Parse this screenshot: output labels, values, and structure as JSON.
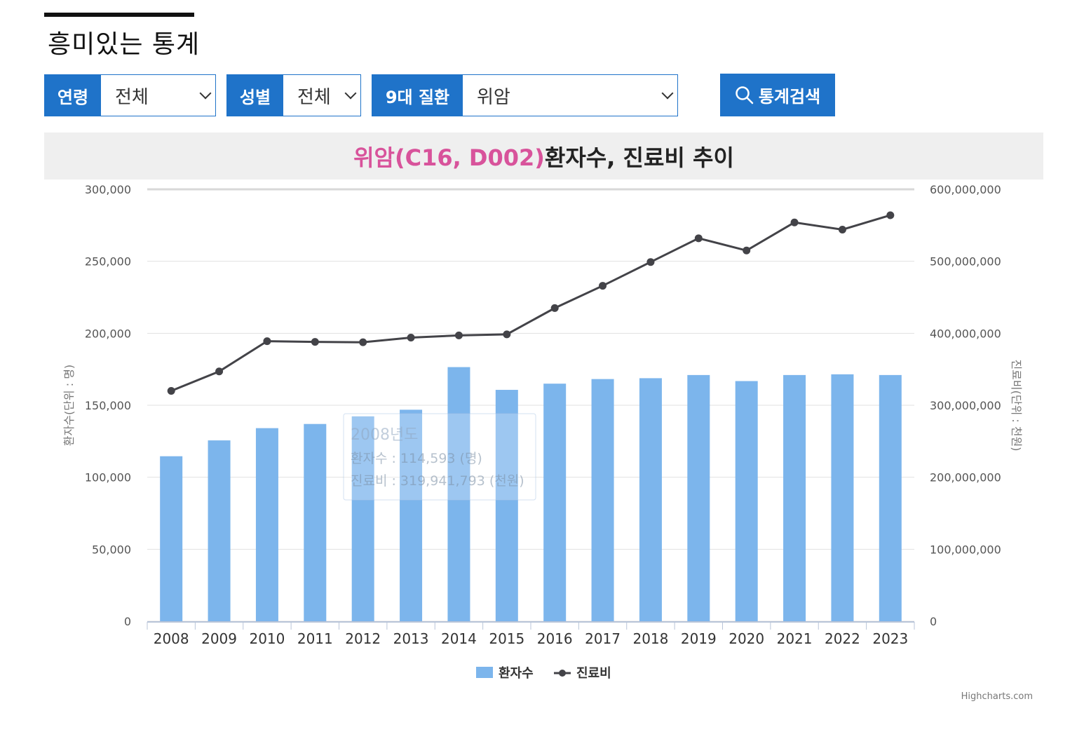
{
  "page": {
    "title": "흥미있는 통계"
  },
  "filters": {
    "age": {
      "label": "연령",
      "value": "전체"
    },
    "sex": {
      "label": "성별",
      "value": "전체"
    },
    "disease": {
      "label": "9대 질환",
      "value": "위암"
    }
  },
  "search_button": {
    "label": "통계검색",
    "icon": "search-icon"
  },
  "chart_header": {
    "highlight": "위암(C16, D002)",
    "rest": " 환자수, 진료비 추이"
  },
  "colors": {
    "accent": "#1f73c9",
    "bar": "#7cb5ec",
    "line": "#434348",
    "highlight": "#d8539b"
  },
  "chart_data": {
    "type": "bar",
    "categories": [
      "2008",
      "2009",
      "2010",
      "2011",
      "2012",
      "2013",
      "2014",
      "2015",
      "2016",
      "2017",
      "2018",
      "2019",
      "2020",
      "2021",
      "2022",
      "2023"
    ],
    "series": [
      {
        "name": "환자수",
        "type": "bar",
        "axis": "left",
        "values": [
          114593,
          125600,
          134100,
          137000,
          142300,
          146900,
          176500,
          160700,
          165000,
          168200,
          168800,
          171000,
          166800,
          171000,
          171500,
          171000
        ]
      },
      {
        "name": "진료비",
        "type": "line",
        "axis": "right",
        "values": [
          319941793,
          347000000,
          389000000,
          388000000,
          387500000,
          394000000,
          397000000,
          398500000,
          435000000,
          466000000,
          499000000,
          532000000,
          515000000,
          554000000,
          544000000,
          564000000
        ]
      }
    ],
    "ylabel": "환자수(단위 : 명)",
    "y2label": "진료비(단위 : 천원)",
    "ylim": [
      0,
      300000
    ],
    "y2lim": [
      0,
      600000000
    ],
    "yticks": [
      "0",
      "50,000",
      "100,000",
      "150,000",
      "200,000",
      "250,000",
      "300,000"
    ],
    "y2ticks": [
      "0",
      "100,000,000",
      "200,000,000",
      "300,000,000",
      "400,000,000",
      "500,000,000",
      "600,000,000"
    ],
    "grid": true,
    "legend": "bottom-center",
    "tooltip": {
      "title": "2008년도",
      "line1": "환자수 : 114,593 (명)",
      "line2": "진료비 : 319,941,793 (천원)"
    },
    "credit": "Highcharts.com"
  }
}
